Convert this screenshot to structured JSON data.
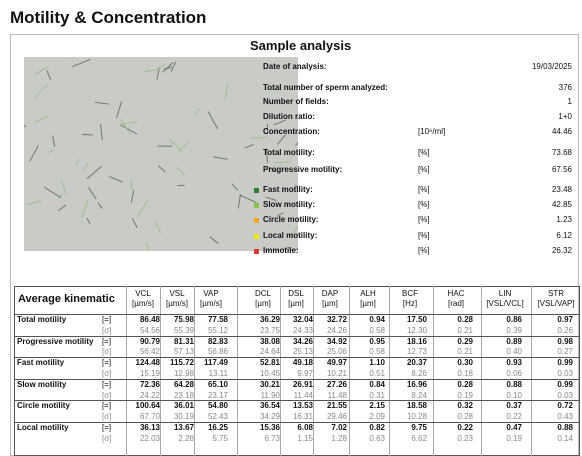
{
  "header": {
    "title": "Motility & Concentration"
  },
  "sample": {
    "title": "Sample analysis",
    "rows": [
      {
        "label": "Date of analysis:",
        "value": "19/03/2025"
      },
      {
        "label": "Total number of sperm analyzed:",
        "value": "376"
      },
      {
        "label": "Number of fields:",
        "value": "1"
      },
      {
        "label": "Dilution ratio:",
        "value": "1+0"
      },
      {
        "label": "Concentration:",
        "unit": "[10⁶/ml]",
        "value": "44.46"
      },
      {
        "label": "Total motility:",
        "unit": "[%]",
        "value": "73.68"
      },
      {
        "label": "Progressive motility:",
        "unit": "[%]",
        "value": "67.56"
      },
      {
        "label": "Fast motility:",
        "unit": "[%]",
        "value": "23.48",
        "color": "#2e7d32"
      },
      {
        "label": "Slow motility:",
        "unit": "[%]",
        "value": "42.85",
        "color": "#8bc34a"
      },
      {
        "label": "Circle motility:",
        "unit": "[%]",
        "value": "1.23",
        "color": "#f5a623"
      },
      {
        "label": "Local motility:",
        "unit": "[%]",
        "value": "6.12",
        "color": "#f2e600"
      },
      {
        "label": "Immotile:",
        "unit": "[%]",
        "value": "26.32",
        "color": "#e53935"
      }
    ]
  },
  "table": {
    "title": "Average kinematic",
    "columns": [
      {
        "name": "VCL",
        "unit": "[µm/s]"
      },
      {
        "name": "VSL",
        "unit": "[µm/s]"
      },
      {
        "name": "VAP",
        "unit": "[µm/s]"
      },
      {
        "name": "DCL",
        "unit": "[µm]"
      },
      {
        "name": "DSL",
        "unit": "[µm]"
      },
      {
        "name": "DAP",
        "unit": "[µm]"
      },
      {
        "name": "ALH",
        "unit": "[µm]"
      },
      {
        "name": "BCF",
        "unit": "[Hz]"
      },
      {
        "name": "HAC",
        "unit": "[rad]"
      },
      {
        "name": "LIN",
        "unit": "[VSL/VCL]"
      },
      {
        "name": "STR",
        "unit": "[VSL/VAP]"
      }
    ],
    "rows": [
      {
        "label": "Total motility",
        "stats": [
          {
            "marker": "[=]",
            "values": [
              "86.48",
              "75.98",
              "77.58",
              "36.29",
              "32.04",
              "32.72",
              "0.94",
              "17.50",
              "0.28",
              "0.86",
              "0.97"
            ]
          },
          {
            "marker": "[σ]",
            "values": [
              "54.56",
              "55.39",
              "55.12",
              "23.75",
              "24.33",
              "24.26",
              "0.58",
              "12.30",
              "0.21",
              "0.39",
              "0.26"
            ]
          }
        ]
      },
      {
        "label": "Progressive motility",
        "stats": [
          {
            "marker": "[=]",
            "values": [
              "90.79",
              "81.31",
              "82.83",
              "38.08",
              "34.26",
              "34.92",
              "0.95",
              "18.16",
              "0.29",
              "0.89",
              "0.98"
            ]
          },
          {
            "marker": "[σ]",
            "values": [
              "56.42",
              "57.13",
              "56.86",
              "24.64",
              "25.13",
              "25.06",
              "0.58",
              "12.73",
              "0.21",
              "0.40",
              "0.27"
            ]
          }
        ]
      },
      {
        "label": "Fast motility",
        "stats": [
          {
            "marker": "[=]",
            "values": [
              "124.48",
              "115.72",
              "117.49",
              "52.81",
              "49.18",
              "49.97",
              "1.10",
              "20.37",
              "0.30",
              "0.93",
              "0.99"
            ]
          },
          {
            "marker": "[σ]",
            "values": [
              "15.19",
              "12.98",
              "13.11",
              "10.45",
              "9.97",
              "10.21",
              "0.51",
              "8.26",
              "0.18",
              "0.06",
              "0.03"
            ]
          }
        ]
      },
      {
        "label": "Slow motility",
        "stats": [
          {
            "marker": "[=]",
            "values": [
              "72.36",
              "64.28",
              "65.10",
              "30.21",
              "26.91",
              "27.26",
              "0.84",
              "16.96",
              "0.28",
              "0.88",
              "0.99"
            ]
          },
          {
            "marker": "[σ]",
            "values": [
              "24.22",
              "23.18",
              "23.17",
              "11.90",
              "11.44",
              "11.48",
              "0.31",
              "8.24",
              "0.19",
              "0.10",
              "0.03"
            ]
          }
        ]
      },
      {
        "label": "Circle motility",
        "stats": [
          {
            "marker": "[=]",
            "values": [
              "100.64",
              "36.01",
              "54.80",
              "36.54",
              "13.53",
              "21.55",
              "2.15",
              "18.58",
              "0.32",
              "0.37",
              "0.72"
            ]
          },
          {
            "marker": "[σ]",
            "values": [
              "67.70",
              "30.19",
              "52.43",
              "34.29",
              "16.31",
              "29.46",
              "2.09",
              "10.28",
              "0.28",
              "0.22",
              "0.43"
            ]
          }
        ]
      },
      {
        "label": "Local motility",
        "stats": [
          {
            "marker": "[=]",
            "values": [
              "36.13",
              "13.67",
              "16.25",
              "15.36",
              "6.08",
              "7.02",
              "0.82",
              "9.75",
              "0.22",
              "0.47",
              "0.88"
            ]
          },
          {
            "marker": "[σ]",
            "values": [
              "22.03",
              "2.28",
              "5.75",
              "6.73",
              "1.15",
              "1.28",
              "0.63",
              "6.62",
              "0.23",
              "0.19",
              "0.14"
            ]
          }
        ]
      }
    ]
  }
}
